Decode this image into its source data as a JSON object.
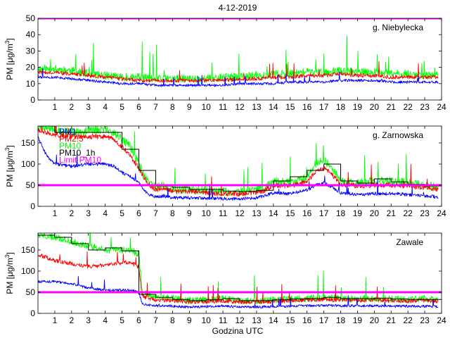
{
  "chart_data": {
    "title": "4-12-2019",
    "xlabel": "Godzina UTC",
    "type": "line",
    "colors": {
      "pm1": "#0000ff",
      "pm25": "#ff0000",
      "pm10": "#00ff00",
      "pm10_1h": "#000000",
      "limit": "#ff00ff"
    },
    "xlim": [
      0,
      24
    ],
    "xticks": [
      "1",
      "2",
      "3",
      "4",
      "5",
      "6",
      "7",
      "8",
      "9",
      "10",
      "11",
      "12",
      "13",
      "14",
      "15",
      "16",
      "17",
      "18",
      "19",
      "20",
      "21",
      "22",
      "23",
      "24"
    ],
    "panels": [
      {
        "name": "g. Niebylecka",
        "ylabel_main": "PM [μg/m",
        "ylabel_sup": "3",
        "ylabel_end": "]",
        "ylim": [
          0,
          50
        ],
        "yticks": [
          "0",
          "10",
          "20",
          "30",
          "40",
          "50"
        ],
        "limit": 50,
        "legend": [],
        "series": [
          {
            "key": "pm10",
            "name": "PM10",
            "x": [
              0,
              1,
              2,
              3,
              4,
              5,
              6,
              7,
              8,
              9,
              10,
              11,
              12,
              13,
              14,
              15,
              16,
              17,
              18,
              19,
              20,
              21,
              22,
              23,
              23.8
            ],
            "values": [
              19,
              19,
              18,
              16,
              15,
              14,
              14,
              13,
              13,
              13,
              13,
              14,
              14,
              15,
              16,
              16,
              17,
              17,
              18,
              17,
              17,
              16,
              16,
              15,
              15
            ],
            "noise": 2.5
          },
          {
            "key": "pm25",
            "name": "PM2.5",
            "x": [
              0,
              1,
              2,
              3,
              4,
              5,
              6,
              7,
              8,
              9,
              10,
              11,
              12,
              13,
              14,
              15,
              16,
              17,
              18,
              19,
              20,
              21,
              22,
              23,
              23.8
            ],
            "values": [
              17,
              17,
              16,
              15,
              14,
              13,
              12,
              12,
              12,
              12,
              12,
              12,
              13,
              13,
              14,
              14,
              15,
              15,
              16,
              15,
              15,
              14,
              14,
              14,
              14
            ],
            "noise": 1.2
          },
          {
            "key": "pm1",
            "name": "PM1",
            "x": [
              0,
              1,
              2,
              3,
              4,
              5,
              6,
              7,
              8,
              9,
              10,
              11,
              12,
              13,
              14,
              15,
              16,
              17,
              18,
              19,
              20,
              21,
              22,
              23,
              23.8
            ],
            "values": [
              14,
              14,
              13,
              12,
              11,
              10,
              10,
              9,
              9,
              9,
              9,
              9,
              10,
              10,
              10,
              11,
              11,
              11,
              12,
              12,
              12,
              11,
              11,
              11,
              11
            ],
            "noise": 0.8
          }
        ]
      },
      {
        "name": "g. Zarnowska",
        "ylabel_main": "PM [μg/m",
        "ylabel_sup": "3",
        "ylabel_end": "]",
        "ylim": [
          0,
          190
        ],
        "yticks": [
          "0",
          "50",
          "100",
          "150"
        ],
        "limit": 50,
        "legend": [
          {
            "key": "pm1",
            "label": "PM1"
          },
          {
            "key": "pm25",
            "label": "PM2.5"
          },
          {
            "key": "pm10",
            "label": "PM10"
          },
          {
            "key": "pm10_1h",
            "label": "PM10_1h"
          },
          {
            "key": "limit",
            "label": "Limit PM10"
          }
        ],
        "series": [
          {
            "key": "pm10",
            "name": "PM10",
            "x": [
              0,
              0.5,
              1,
              2,
              3,
              4,
              4.5,
              5,
              5.5,
              6,
              6.5,
              7,
              7.5,
              8,
              9,
              10,
              11,
              12,
              13,
              13.5,
              14,
              15,
              16,
              16.5,
              17,
              17.5,
              18,
              19,
              20,
              21,
              22,
              23,
              23.8
            ],
            "values": [
              190,
              185,
              180,
              175,
              178,
              182,
              175,
              160,
              140,
              100,
              60,
              45,
              50,
              40,
              40,
              38,
              35,
              35,
              38,
              45,
              60,
              55,
              70,
              100,
              110,
              90,
              60,
              55,
              60,
              60,
              55,
              50,
              45
            ],
            "noise": 10
          },
          {
            "key": "pm25",
            "name": "PM2.5",
            "x": [
              0,
              0.5,
              1,
              2,
              3,
              4,
              4.5,
              5,
              5.5,
              6,
              6.5,
              7,
              7.5,
              8,
              9,
              10,
              11,
              12,
              13,
              13.5,
              14,
              15,
              16,
              16.5,
              17,
              17.5,
              18,
              19,
              20,
              21,
              22,
              23,
              23.8
            ],
            "values": [
              180,
              175,
              170,
              165,
              165,
              165,
              160,
              140,
              120,
              90,
              55,
              40,
              42,
              35,
              35,
              33,
              30,
              30,
              33,
              38,
              50,
              48,
              60,
              80,
              90,
              75,
              52,
              48,
              50,
              50,
              48,
              45,
              40
            ],
            "noise": 6
          },
          {
            "key": "pm1",
            "name": "PM1",
            "x": [
              0,
              0.5,
              1,
              2,
              3,
              4,
              4.5,
              5,
              5.5,
              6,
              6.5,
              7,
              7.5,
              8,
              9,
              10,
              11,
              12,
              13,
              13.5,
              14,
              15,
              16,
              16.5,
              17,
              17.5,
              18,
              19,
              20,
              21,
              22,
              23,
              23.8
            ],
            "values": [
              165,
              120,
              100,
              95,
              100,
              100,
              95,
              80,
              70,
              55,
              30,
              22,
              25,
              20,
              20,
              20,
              18,
              18,
              20,
              25,
              32,
              30,
              38,
              50,
              55,
              45,
              32,
              28,
              30,
              30,
              28,
              25,
              22
            ],
            "noise": 4
          },
          {
            "key": "pm10_1h",
            "name": "PM10_1h",
            "x": [
              0,
              1,
              2,
              3,
              4,
              5,
              6,
              7,
              8,
              9,
              10,
              11,
              12,
              13,
              14,
              15,
              16,
              17,
              18,
              19,
              20,
              21,
              22,
              23
            ],
            "values": [
              190,
              175,
              175,
              175,
              175,
              135,
              85,
              48,
              45,
              40,
              40,
              36,
              35,
              38,
              60,
              70,
              85,
              100,
              60,
              55,
              65,
              58,
              52,
              48
            ],
            "step": true
          }
        ]
      },
      {
        "name": "Zawale",
        "ylabel_main": "PM [μg/m",
        "ylabel_sup": "3",
        "ylabel_end": "]",
        "ylim": [
          0,
          190
        ],
        "yticks": [
          "0",
          "50",
          "100",
          "150"
        ],
        "limit": 50,
        "legend": [],
        "series": [
          {
            "key": "pm10",
            "name": "PM10",
            "x": [
              0,
              1,
              2,
              3,
              4,
              5,
              5.5,
              6,
              6.2,
              7,
              8,
              9,
              10,
              11,
              12,
              13,
              14,
              15,
              16,
              17,
              18,
              19,
              20,
              21,
              22,
              23,
              23.8
            ],
            "values": [
              185,
              180,
              170,
              160,
              150,
              150,
              150,
              140,
              50,
              40,
              35,
              30,
              32,
              35,
              30,
              30,
              32,
              34,
              35,
              38,
              35,
              35,
              36,
              34,
              33,
              35,
              30
            ],
            "noise": 8
          },
          {
            "key": "pm25",
            "name": "PM2.5",
            "x": [
              0,
              1,
              2,
              3,
              4,
              5,
              5.5,
              6,
              6.2,
              7,
              8,
              9,
              10,
              11,
              12,
              13,
              14,
              15,
              16,
              17,
              18,
              19,
              20,
              21,
              22,
              23,
              23.8
            ],
            "values": [
              140,
              125,
              118,
              110,
              115,
              120,
              120,
              110,
              40,
              32,
              30,
              27,
              28,
              30,
              27,
              27,
              28,
              30,
              32,
              33,
              31,
              31,
              32,
              30,
              29,
              31,
              28
            ],
            "noise": 5
          },
          {
            "key": "pm1",
            "name": "PM1",
            "x": [
              0,
              1,
              2,
              3,
              4,
              5,
              5.5,
              6,
              6.2,
              7,
              8,
              9,
              10,
              11,
              12,
              13,
              14,
              15,
              16,
              17,
              18,
              19,
              20,
              21,
              22,
              23,
              23.8
            ],
            "values": [
              75,
              75,
              70,
              60,
              55,
              55,
              55,
              50,
              22,
              18,
              17,
              15,
              16,
              18,
              15,
              15,
              16,
              17,
              18,
              19,
              18,
              18,
              18,
              17,
              17,
              17,
              16
            ],
            "noise": 3
          },
          {
            "key": "pm10_1h",
            "name": "PM10_1h",
            "x": [
              0,
              1,
              2,
              3,
              4,
              5,
              6,
              7,
              8,
              9,
              10,
              11,
              12,
              13,
              14,
              15,
              16,
              17,
              18,
              19,
              20,
              21,
              22,
              23
            ],
            "values": [
              185,
              180,
              165,
              150,
              155,
              148,
              45,
              38,
              33,
              30,
              32,
              35,
              30,
              30,
              32,
              34,
              35,
              38,
              35,
              35,
              36,
              34,
              33,
              33
            ],
            "step": true
          }
        ]
      }
    ]
  }
}
